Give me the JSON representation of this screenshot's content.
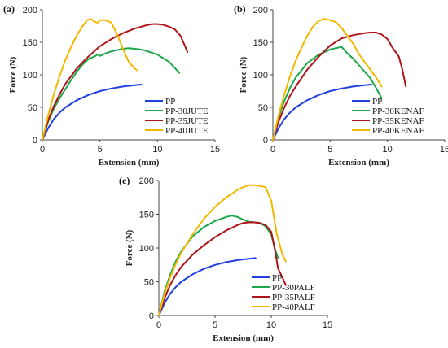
{
  "colors": {
    "PP": "#1f3fe0",
    "s30": "#1aa84a",
    "s35": "#b0141a",
    "s40": "#f2b800"
  },
  "chart_data": [
    {
      "panel": "(a)",
      "type": "line",
      "xlabel": "Extension (mm)",
      "ylabel": "Force (N)",
      "xlim": [
        0,
        15
      ],
      "ylim": [
        0,
        200
      ],
      "xticks": [
        0,
        5,
        10,
        15
      ],
      "yticks": [
        0,
        50,
        100,
        150,
        200
      ],
      "legend": "bottom-right",
      "series": [
        {
          "name": "PP",
          "color": "PP",
          "x": [
            0,
            0.5,
            1,
            1.5,
            2,
            3,
            4,
            5,
            6,
            7,
            8,
            8.6
          ],
          "y": [
            0,
            18,
            32,
            42,
            50,
            61,
            69,
            75,
            79,
            82,
            84,
            85
          ]
        },
        {
          "name": "PP-30JUTE",
          "color": "s30",
          "x": [
            0,
            0.5,
            1,
            1.5,
            2,
            2.5,
            3,
            3.5,
            4,
            4.5,
            4.8,
            5,
            5.5,
            6,
            7,
            7.5,
            8,
            8.5,
            9,
            10,
            11,
            11.9
          ],
          "y": [
            0,
            28,
            48,
            64,
            78,
            92,
            105,
            116,
            124,
            128,
            131,
            129,
            133,
            136,
            140,
            141,
            140,
            139,
            137,
            131,
            120,
            103
          ]
        },
        {
          "name": "PP-35JUTE",
          "color": "s35",
          "x": [
            0,
            0.5,
            1,
            1.5,
            2,
            3,
            4,
            5,
            6,
            7,
            8,
            9,
            9.5,
            10,
            10.5,
            11,
            11.5,
            12,
            12.3,
            12.6
          ],
          "y": [
            0,
            30,
            52,
            70,
            86,
            110,
            128,
            144,
            155,
            164,
            171,
            176,
            178,
            178,
            177,
            174,
            170,
            160,
            148,
            135
          ]
        },
        {
          "name": "PP-40JUTE",
          "color": "s40",
          "x": [
            0,
            0.5,
            1,
            1.5,
            2,
            2.5,
            3,
            3.5,
            3.9,
            4.2,
            4.5,
            4.8,
            5,
            5.5,
            6,
            6.5,
            7,
            7.5,
            8,
            8.2
          ],
          "y": [
            0,
            38,
            70,
            98,
            123,
            143,
            161,
            175,
            184,
            186,
            182,
            180,
            184,
            184,
            180,
            162,
            140,
            120,
            110,
            107
          ]
        }
      ]
    },
    {
      "panel": "(b)",
      "type": "line",
      "xlabel": "Extension (mm)",
      "ylabel": "Force (N)",
      "xlim": [
        0,
        15
      ],
      "ylim": [
        0,
        200
      ],
      "xticks": [
        0,
        5,
        10,
        15
      ],
      "yticks": [
        0,
        50,
        100,
        150,
        200
      ],
      "legend": "bottom-left",
      "series": [
        {
          "name": "PP",
          "color": "PP",
          "x": [
            0,
            0.5,
            1,
            1.5,
            2,
            3,
            4,
            5,
            6,
            7,
            8,
            8.6
          ],
          "y": [
            0,
            18,
            32,
            42,
            50,
            61,
            69,
            75,
            79,
            82,
            84,
            85
          ]
        },
        {
          "name": "PP-30KENAF",
          "color": "s30",
          "x": [
            0,
            0.5,
            1,
            1.5,
            2,
            3,
            4,
            5,
            5.5,
            6,
            6.5,
            7,
            7.5,
            8,
            8.5,
            9,
            9.5
          ],
          "y": [
            0,
            35,
            60,
            80,
            96,
            118,
            131,
            139,
            141,
            143,
            133,
            125,
            115,
            105,
            95,
            80,
            64
          ]
        },
        {
          "name": "PP-35KENAF",
          "color": "s35",
          "x": [
            0,
            0.5,
            1,
            1.5,
            2,
            3,
            4,
            5,
            6,
            7,
            8,
            8.5,
            9,
            9.5,
            10,
            10.5,
            11,
            11.3,
            11.6
          ],
          "y": [
            0,
            28,
            50,
            68,
            82,
            108,
            128,
            145,
            156,
            161,
            164,
            165,
            165,
            162,
            155,
            140,
            128,
            108,
            82
          ]
        },
        {
          "name": "PP-40KENAF",
          "color": "s40",
          "x": [
            0,
            0.5,
            1,
            1.5,
            2,
            2.5,
            3,
            3.5,
            4,
            4.5,
            5,
            5.5,
            6,
            6.5,
            7,
            7.5,
            8,
            8.5,
            9,
            9.5
          ],
          "y": [
            0,
            38,
            70,
            98,
            122,
            142,
            160,
            174,
            183,
            186,
            184,
            181,
            172,
            160,
            148,
            132,
            120,
            108,
            96,
            82
          ]
        }
      ]
    },
    {
      "panel": "(c)",
      "type": "line",
      "xlabel": "Extension (mm)",
      "ylabel": "Force (N)",
      "xlim": [
        0,
        15
      ],
      "ylim": [
        0,
        200
      ],
      "xticks": [
        0,
        5,
        10,
        15
      ],
      "yticks": [
        0,
        50,
        100,
        150,
        200
      ],
      "legend": "bottom-right",
      "series": [
        {
          "name": "PP",
          "color": "PP",
          "x": [
            0,
            0.5,
            1,
            1.5,
            2,
            3,
            4,
            5,
            6,
            7,
            8,
            8.6
          ],
          "y": [
            0,
            18,
            32,
            42,
            50,
            61,
            69,
            75,
            79,
            82,
            84,
            85
          ]
        },
        {
          "name": "PP-30PALF",
          "color": "s30",
          "x": [
            0,
            0.5,
            1,
            1.5,
            2,
            3,
            4,
            5,
            6,
            6.5,
            7,
            7.5,
            8,
            8.5,
            9,
            9.5,
            10,
            10.3,
            10.6
          ],
          "y": [
            0,
            35,
            60,
            80,
            95,
            117,
            131,
            140,
            146,
            148,
            146,
            142,
            139,
            138,
            137,
            132,
            120,
            100,
            85
          ]
        },
        {
          "name": "PP-35PALF",
          "color": "s35",
          "x": [
            0,
            0.5,
            1,
            1.5,
            2,
            3,
            4,
            5,
            6,
            7,
            7.5,
            8,
            8.5,
            9,
            9.5,
            10,
            10.3,
            10.6,
            11,
            11.3
          ],
          "y": [
            0,
            25,
            45,
            60,
            72,
            90,
            104,
            116,
            126,
            134,
            137,
            138,
            138,
            137,
            134,
            124,
            100,
            70,
            56,
            45
          ]
        },
        {
          "name": "PP-40PALF",
          "color": "s40",
          "x": [
            0,
            0.5,
            1,
            1.5,
            2,
            3,
            4,
            5,
            6,
            7,
            7.5,
            8,
            8.5,
            9,
            9.5,
            10,
            10.5,
            11,
            11.3
          ],
          "y": [
            0,
            32,
            56,
            76,
            93,
            120,
            143,
            161,
            175,
            186,
            190,
            193,
            193,
            192,
            190,
            170,
            120,
            90,
            80
          ]
        }
      ]
    }
  ]
}
